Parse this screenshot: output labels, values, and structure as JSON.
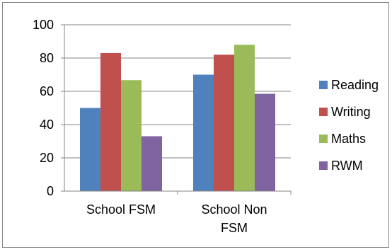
{
  "chart_data": {
    "type": "bar",
    "title": "",
    "xlabel": "",
    "ylabel": "",
    "ylim": [
      0,
      100
    ],
    "yticks": [
      0,
      20,
      40,
      60,
      80,
      100
    ],
    "grid": true,
    "legend_position": "right",
    "categories": [
      [
        "School FSM"
      ],
      [
        "School Non",
        "FSM"
      ]
    ],
    "series": [
      {
        "name": "Reading",
        "color": "#4f81bd",
        "values": [
          50,
          70
        ]
      },
      {
        "name": "Writing",
        "color": "#c0504d",
        "values": [
          83,
          82
        ]
      },
      {
        "name": "Maths",
        "color": "#9bbb59",
        "values": [
          66.7,
          88
        ]
      },
      {
        "name": "RWM",
        "color": "#8064a2",
        "values": [
          33,
          58.5
        ]
      }
    ]
  }
}
